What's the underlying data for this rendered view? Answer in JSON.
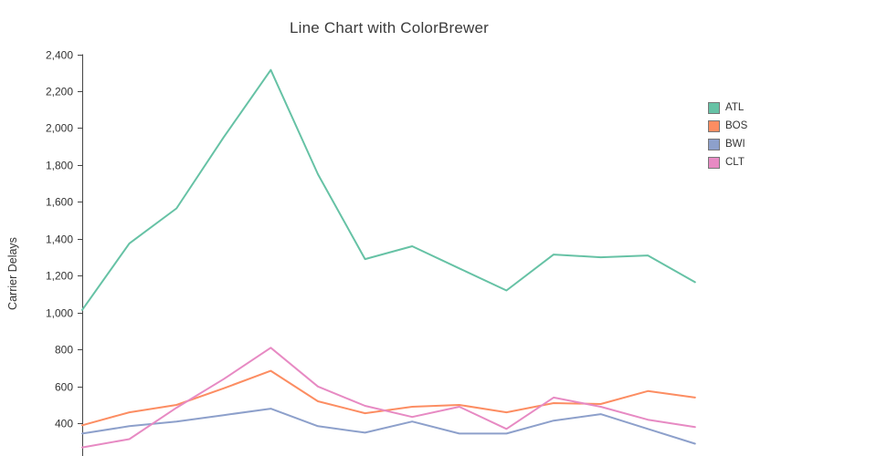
{
  "chart_data": {
    "type": "line",
    "title": "Line Chart with ColorBrewer",
    "xlabel": "",
    "ylabel": "Carrier Delays",
    "x": [
      1,
      2,
      3,
      4,
      5,
      6,
      7,
      8,
      9,
      10,
      11,
      12,
      13,
      14
    ],
    "x_axis_labels_visible": false,
    "yticks": [
      400,
      600,
      800,
      1000,
      1200,
      1400,
      1600,
      1800,
      2000,
      2200,
      2400
    ],
    "ylim_visible": [
      223,
      2400
    ],
    "grid": false,
    "legend_position": "right",
    "legend_entries": [
      "ATL",
      "BOS",
      "BWI",
      "CLT"
    ],
    "series": [
      {
        "name": "ATL",
        "color": "#66c2a5",
        "values": [
          1015,
          1375,
          1565,
          1950,
          2315,
          1750,
          1290,
          1360,
          1240,
          1120,
          1315,
          1300,
          1310,
          1165
        ]
      },
      {
        "name": "BOS",
        "color": "#fc8d62",
        "values": [
          390,
          460,
          500,
          590,
          685,
          520,
          455,
          490,
          500,
          460,
          510,
          505,
          575,
          540
        ]
      },
      {
        "name": "BWI",
        "color": "#8da0cb",
        "values": [
          345,
          385,
          410,
          445,
          480,
          385,
          350,
          410,
          345,
          345,
          415,
          450,
          370,
          290
        ]
      },
      {
        "name": "CLT",
        "color": "#e78ac3",
        "values": [
          270,
          315,
          485,
          640,
          810,
          600,
          495,
          435,
          490,
          370,
          540,
          490,
          420,
          380
        ]
      }
    ]
  },
  "colors": {
    "background": "#ffffff",
    "axis_line": "#444444",
    "tick_text": "#333333",
    "title_text": "#3b3b3b",
    "legend_swatch_border": "#777777"
  }
}
